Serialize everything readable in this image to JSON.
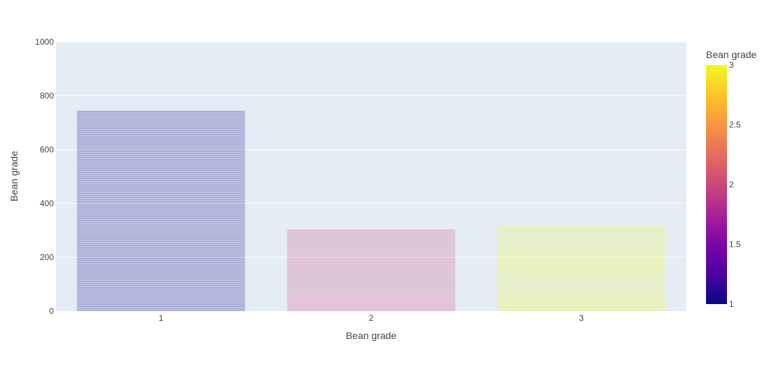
{
  "chart_data": {
    "type": "bar",
    "categories": [
      "1",
      "2",
      "3"
    ],
    "values": [
      745,
      304,
      316
    ],
    "color_values": [
      1,
      2,
      3
    ],
    "xlabel": "Bean grade",
    "ylabel": "Bean grade",
    "ylim": [
      0,
      1000
    ],
    "yticks": [
      0,
      200,
      400,
      600,
      800,
      1000
    ],
    "y_tick_labels": [
      "0",
      "200",
      "400",
      "600",
      "800",
      "1000"
    ],
    "grid": true,
    "bar_opacity": 0.2,
    "bar_pattern": "horizontal-lines",
    "plot_background": "#e5ecf6",
    "colorbar": {
      "title": "Bean grade",
      "range": [
        1,
        3
      ],
      "ticks": [
        1,
        1.5,
        2,
        2.5,
        3
      ],
      "tick_labels": [
        "1",
        "1.5",
        "2",
        "2.5",
        "3"
      ],
      "placement": "right",
      "colorscale": [
        "#0d0887",
        "#46039f",
        "#7201a8",
        "#9c179e",
        "#bd3786",
        "#d8576b",
        "#ed7953",
        "#fb9f3a",
        "#fdca26",
        "#f0f921"
      ]
    }
  }
}
